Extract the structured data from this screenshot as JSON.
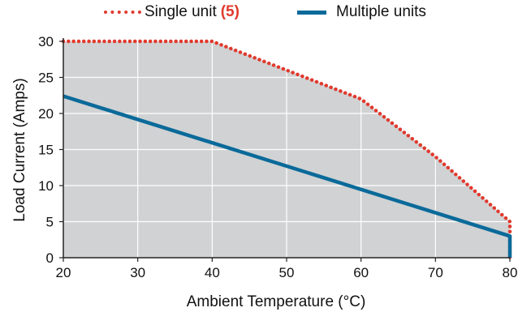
{
  "chart_data": {
    "type": "area",
    "xlabel": "Ambient Temperature (°C)",
    "ylabel": "Load Current (Amps)",
    "xlim": [
      20,
      80
    ],
    "ylim": [
      0,
      30
    ],
    "x_ticks": [
      "20",
      "30",
      "40",
      "50",
      "60",
      "70",
      "80"
    ],
    "y_ticks": [
      "0",
      "5",
      "10",
      "15",
      "20",
      "25",
      "30"
    ],
    "grid": true,
    "legend_position": "top-center",
    "shaded_region": "under Single unit curve",
    "series": [
      {
        "name": "Single unit",
        "note": "(5)",
        "style": "dotted",
        "color": "#e03a2e",
        "x": [
          20,
          40,
          50,
          60,
          70,
          80,
          80
        ],
        "y": [
          30,
          30,
          26,
          22,
          14,
          5,
          0
        ]
      },
      {
        "name": "Multiple units",
        "style": "solid",
        "color": "#0a6a9a",
        "x": [
          20,
          80,
          80
        ],
        "y": [
          22.4,
          3,
          0
        ]
      }
    ],
    "colors": {
      "fill": "#d0d2d3",
      "grid": "#ffffff",
      "axis": "#222222"
    }
  }
}
